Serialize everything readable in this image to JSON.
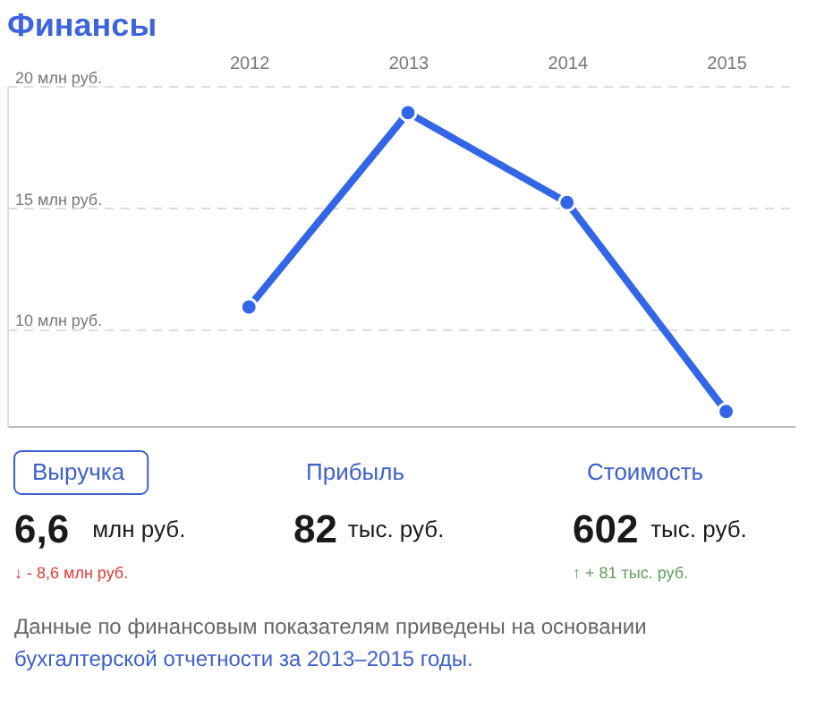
{
  "chart_data": [
    {
      "type": "line",
      "title": "Финансы",
      "categories": [
        "2012",
        "2013",
        "2014",
        "2015"
      ],
      "series": [
        {
          "color": "#3366e6",
          "values": [
            10.9,
            18.9,
            15.2,
            6.6
          ]
        }
      ],
      "ylim": [
        6,
        20
      ],
      "yticks": [
        {
          "value": 10,
          "label": "10 млн руб."
        },
        {
          "value": 15,
          "label": "15 млн руб."
        },
        {
          "value": 20,
          "label": "20 млн руб."
        }
      ],
      "grid": "y",
      "marker": "circle",
      "line_style": "solid",
      "legend": false
    },
    {
      "type": "other",
      "annotations": [
        "Выручка",
        "6,6",
        "млн руб.",
        "↓ - 8,6 млн руб.",
        "Прибыль",
        "82",
        "тыс. руб.",
        "Стоимость",
        "602",
        "тыс. руб.",
        "↑ + 81 тыс. руб.",
        "Данные по финансовым показателям приведены на основании",
        "бухгалтерской отчетности за 2013–2015 годы."
      ]
    }
  ]
}
